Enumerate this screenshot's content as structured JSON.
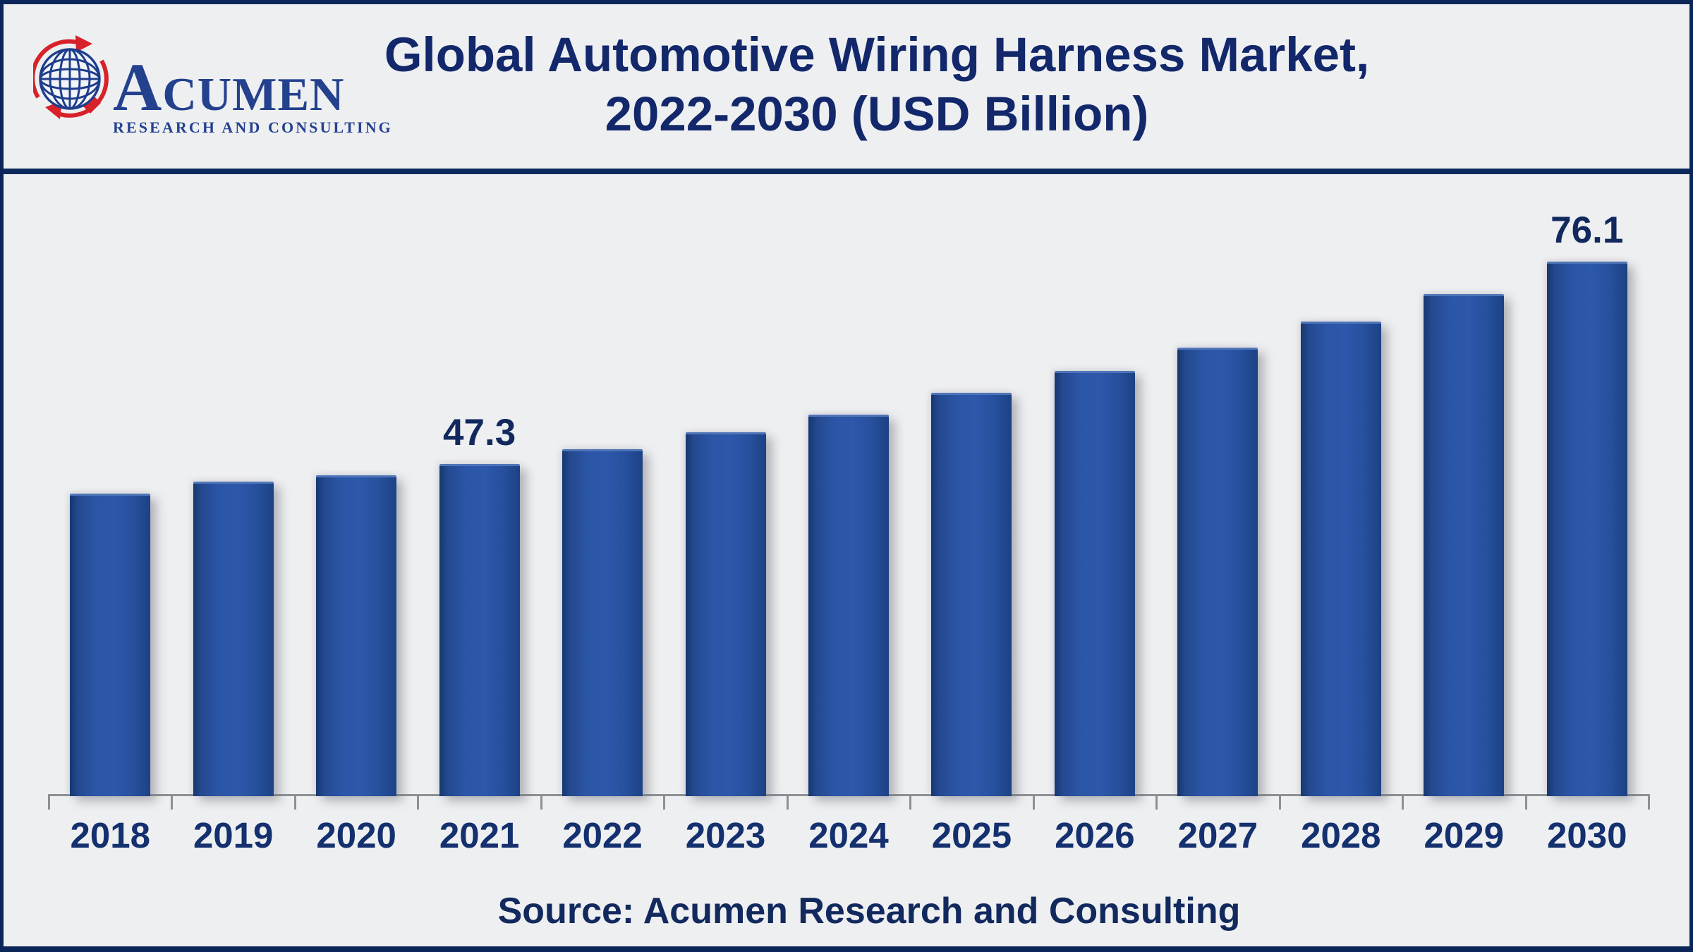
{
  "logo": {
    "name_initial": "A",
    "name_rest": "CUMEN",
    "subtitle": "RESEARCH AND CONSULTING"
  },
  "header": {
    "title_line1": "Global Automotive Wiring Harness Market,",
    "title_line2": "2022-2030 (USD Billion)"
  },
  "footer": {
    "source": "Source: Acumen Research and Consulting"
  },
  "colors": {
    "background": "#eeeff1",
    "outer_border": "#0b2559",
    "divider": "#0c2a5e",
    "title_navy": "#13286b",
    "bar_blue": "#2b55a6",
    "bar_edge_dark": "#16376f",
    "axis_gray": "#8d9094",
    "logo_navy": "#24418e",
    "logo_red": "#d7222a"
  },
  "chart_data": {
    "type": "bar",
    "title": "Global Automotive Wiring Harness Market, 2022-2030 (USD Billion)",
    "unit": "USD Billion",
    "categories": [
      "2018",
      "2019",
      "2020",
      "2021",
      "2022",
      "2023",
      "2024",
      "2025",
      "2026",
      "2027",
      "2028",
      "2029",
      "2030"
    ],
    "values": [
      43.1,
      44.8,
      45.7,
      47.3,
      49.4,
      51.8,
      54.3,
      57.4,
      60.5,
      63.9,
      67.6,
      71.5,
      76.1
    ],
    "data_labels": {
      "2021": "47.3",
      "2030": "76.1"
    },
    "xlabel": "",
    "ylabel": "",
    "ylim": [
      0,
      80
    ],
    "grid": false,
    "legend": false,
    "note": "only 2021 and 2030 bars carry printed value labels; remaining values estimated from bar heights"
  }
}
